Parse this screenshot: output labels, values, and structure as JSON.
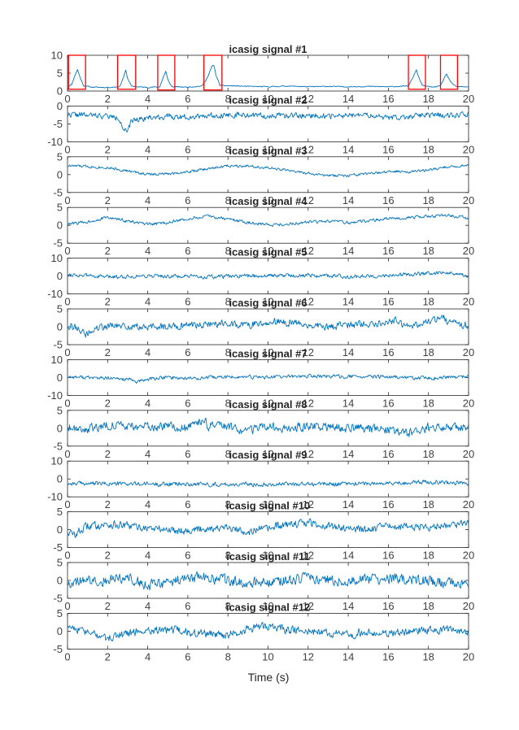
{
  "chart_data": {
    "type": "line",
    "line_color": "#0072BD",
    "box_color": "#FF0000",
    "axis_color": "#262626",
    "xlabel": "Time (s)",
    "xlim": [
      0,
      20
    ],
    "x_ticks": [
      0,
      2,
      4,
      6,
      8,
      10,
      12,
      14,
      16,
      18,
      20
    ],
    "grid": false,
    "panels": [
      {
        "title": "icasig signal #1",
        "ylim": [
          0,
          10
        ],
        "y_ticks": [
          0,
          5,
          10
        ],
        "series_points": [
          [
            0,
            1.3
          ],
          [
            0.2,
            1.8
          ],
          [
            0.4,
            4.8
          ],
          [
            0.5,
            6
          ],
          [
            0.6,
            4.2
          ],
          [
            0.8,
            1.5
          ],
          [
            1.2,
            1.1
          ],
          [
            2,
            1
          ],
          [
            2.6,
            1.2
          ],
          [
            2.8,
            4
          ],
          [
            2.9,
            5.8
          ],
          [
            3,
            3.5
          ],
          [
            3.2,
            1.3
          ],
          [
            4,
            1
          ],
          [
            4.6,
            1.2
          ],
          [
            4.8,
            4.2
          ],
          [
            4.9,
            5.5
          ],
          [
            5,
            3.2
          ],
          [
            5.2,
            1.2
          ],
          [
            6,
            1.1
          ],
          [
            6.7,
            1.4
          ],
          [
            7,
            4
          ],
          [
            7.2,
            6.9
          ],
          [
            7.3,
            7.2
          ],
          [
            7.4,
            4.5
          ],
          [
            7.6,
            1.6
          ],
          [
            8,
            1.5
          ],
          [
            9,
            1.3
          ],
          [
            10,
            1.2
          ],
          [
            11,
            1.4
          ],
          [
            12,
            1.2
          ],
          [
            13,
            1.3
          ],
          [
            14,
            1.2
          ],
          [
            15,
            1.3
          ],
          [
            16,
            1.2
          ],
          [
            17,
            1.4
          ],
          [
            17.2,
            3.5
          ],
          [
            17.4,
            6
          ],
          [
            17.5,
            4
          ],
          [
            17.7,
            1.5
          ],
          [
            18.2,
            1.1
          ],
          [
            18.6,
            1.4
          ],
          [
            18.8,
            3.8
          ],
          [
            18.9,
            4.8
          ],
          [
            19.1,
            2.5
          ],
          [
            19.4,
            1.2
          ],
          [
            20,
            1.2
          ]
        ],
        "seed": 11,
        "noise": 0.12,
        "boxes": [
          [
            0.05,
            0.9,
            0.5,
            10
          ],
          [
            2.5,
            3.4,
            0.5,
            10
          ],
          [
            4.5,
            5.35,
            0.3,
            10
          ],
          [
            6.8,
            7.7,
            0.3,
            10
          ],
          [
            17,
            17.85,
            0.5,
            10
          ],
          [
            18.6,
            19.45,
            0.5,
            10
          ]
        ]
      },
      {
        "title": "icasig signal #2",
        "ylim": [
          -10,
          0
        ],
        "y_ticks": [
          -10,
          -5,
          0
        ],
        "series_points": [
          [
            0,
            -2.3
          ],
          [
            1,
            -2.6
          ],
          [
            2,
            -2.8
          ],
          [
            2.6,
            -3.5
          ],
          [
            2.8,
            -6.5
          ],
          [
            3,
            -7.5
          ],
          [
            3.2,
            -4
          ],
          [
            4,
            -3.2
          ],
          [
            5,
            -3
          ],
          [
            6,
            -3
          ],
          [
            7,
            -2.6
          ],
          [
            8,
            -2.5
          ],
          [
            9,
            -2.6
          ],
          [
            10,
            -2.8
          ],
          [
            11,
            -2.7
          ],
          [
            12,
            -2.6
          ],
          [
            13,
            -2.8
          ],
          [
            14,
            -2.7
          ],
          [
            15,
            -2.6
          ],
          [
            16,
            -3.3
          ],
          [
            17,
            -2.9
          ],
          [
            18,
            -2.6
          ],
          [
            19,
            -2.5
          ],
          [
            20,
            -2.3
          ]
        ],
        "seed": 22,
        "noise": 0.7
      },
      {
        "title": "icasig signal #3",
        "ylim": [
          -5,
          5
        ],
        "y_ticks": [
          -5,
          0,
          5
        ],
        "series_points": [
          [
            0,
            2.5
          ],
          [
            2,
            2
          ],
          [
            3,
            1
          ],
          [
            4,
            0.1
          ],
          [
            5,
            0.2
          ],
          [
            6,
            0.8
          ],
          [
            7,
            1.6
          ],
          [
            8,
            2.5
          ],
          [
            9,
            2.5
          ],
          [
            10,
            1.8
          ],
          [
            11,
            1.2
          ],
          [
            12,
            0.3
          ],
          [
            13,
            -0.3
          ],
          [
            14,
            -0.3
          ],
          [
            15,
            0.2
          ],
          [
            16,
            0.8
          ],
          [
            17,
            0.9
          ],
          [
            18,
            1.2
          ],
          [
            19,
            2.2
          ],
          [
            20,
            2.6
          ]
        ],
        "seed": 33,
        "noise": 0.35
      },
      {
        "title": "icasig signal #4",
        "ylim": [
          -5,
          5
        ],
        "y_ticks": [
          -5,
          0,
          5
        ],
        "series_points": [
          [
            0,
            0.3
          ],
          [
            1,
            1
          ],
          [
            2,
            2.2
          ],
          [
            3,
            1.2
          ],
          [
            4,
            0.2
          ],
          [
            5,
            0.8
          ],
          [
            6,
            1.8
          ],
          [
            7,
            2.5
          ],
          [
            8,
            1.8
          ],
          [
            9,
            0.8
          ],
          [
            10,
            0.2
          ],
          [
            11,
            0.3
          ],
          [
            12,
            0.9
          ],
          [
            13,
            1.1
          ],
          [
            14,
            0.8
          ],
          [
            15,
            1.3
          ],
          [
            16,
            1.8
          ],
          [
            17,
            2.2
          ],
          [
            18,
            2.5
          ],
          [
            19,
            2.8
          ],
          [
            20,
            2
          ]
        ],
        "seed": 44,
        "noise": 0.4
      },
      {
        "title": "icasig signal #5",
        "ylim": [
          -10,
          10
        ],
        "y_ticks": [
          -10,
          0,
          10
        ],
        "series_points": [
          [
            0,
            1
          ],
          [
            2,
            -0.5
          ],
          [
            4,
            0.2
          ],
          [
            6,
            -0.3
          ],
          [
            7,
            -0.6
          ],
          [
            8,
            -0.2
          ],
          [
            10,
            0.3
          ],
          [
            12,
            0.5
          ],
          [
            14,
            -0.2
          ],
          [
            16,
            0.3
          ],
          [
            18,
            1.5
          ],
          [
            19,
            2
          ],
          [
            20,
            -0.5
          ]
        ],
        "seed": 55,
        "noise": 1.0
      },
      {
        "title": "icasig signal #6",
        "ylim": [
          -5,
          5
        ],
        "y_ticks": [
          -5,
          0,
          5
        ],
        "series_points": [
          [
            0,
            0.5
          ],
          [
            0.6,
            -0.5
          ],
          [
            0.9,
            -2.5
          ],
          [
            1.2,
            -1
          ],
          [
            2,
            0.3
          ],
          [
            4,
            -0.2
          ],
          [
            6,
            0.5
          ],
          [
            8,
            1
          ],
          [
            9,
            0.4
          ],
          [
            10,
            1.5
          ],
          [
            12,
            0.6
          ],
          [
            13,
            -0.2
          ],
          [
            14,
            0.5
          ],
          [
            16,
            1.2
          ],
          [
            16.3,
            2
          ],
          [
            17,
            0
          ],
          [
            18,
            1.5
          ],
          [
            18.8,
            3
          ],
          [
            19,
            1
          ],
          [
            20,
            0.5
          ]
        ],
        "seed": 66,
        "noise": 0.9
      },
      {
        "title": "icasig signal #7",
        "ylim": [
          -10,
          10
        ],
        "y_ticks": [
          -10,
          0,
          10
        ],
        "series_points": [
          [
            0,
            0.5
          ],
          [
            2,
            -0.5
          ],
          [
            3,
            -1
          ],
          [
            3.5,
            -2.5
          ],
          [
            4,
            -1
          ],
          [
            5,
            0.2
          ],
          [
            6,
            -0.5
          ],
          [
            8,
            0.3
          ],
          [
            10,
            0.2
          ],
          [
            12,
            0.8
          ],
          [
            14,
            0.5
          ],
          [
            16,
            0.3
          ],
          [
            18,
            -0.5
          ],
          [
            20,
            0.5
          ]
        ],
        "seed": 77,
        "noise": 0.9
      },
      {
        "title": "icasig signal #8",
        "ylim": [
          -5,
          5
        ],
        "y_ticks": [
          -5,
          0,
          5
        ],
        "series_points": [
          [
            0,
            0.5
          ],
          [
            1,
            -0.3
          ],
          [
            2,
            1
          ],
          [
            3,
            0.5
          ],
          [
            4,
            0.3
          ],
          [
            5,
            0.5
          ],
          [
            6,
            0
          ],
          [
            6.8,
            2.5
          ],
          [
            7,
            0.5
          ],
          [
            8,
            0.3
          ],
          [
            9,
            -0.8
          ],
          [
            10,
            0.3
          ],
          [
            11,
            0
          ],
          [
            12,
            0.5
          ],
          [
            14,
            0
          ],
          [
            16,
            -0.3
          ],
          [
            17,
            -1.5
          ],
          [
            18,
            0.3
          ],
          [
            20,
            0.5
          ]
        ],
        "seed": 88,
        "noise": 1.1
      },
      {
        "title": "icasig signal #9",
        "ylim": [
          -10,
          10
        ],
        "y_ticks": [
          -10,
          0,
          10
        ],
        "series_points": [
          [
            0,
            -2.5
          ],
          [
            4,
            -2.8
          ],
          [
            8,
            -3
          ],
          [
            12,
            -2.8
          ],
          [
            16,
            -2.5
          ],
          [
            18,
            -1.5
          ],
          [
            20,
            -2.5
          ]
        ],
        "seed": 99,
        "noise": 1.1
      },
      {
        "title": "icasig signal #10",
        "ylim": [
          -5,
          5
        ],
        "y_ticks": [
          -5,
          0,
          5
        ],
        "series_points": [
          [
            0,
            -0.5
          ],
          [
            0.3,
            -1.5
          ],
          [
            1,
            1
          ],
          [
            2,
            1.5
          ],
          [
            3,
            1
          ],
          [
            4,
            0.5
          ],
          [
            5,
            0
          ],
          [
            6,
            -0.2
          ],
          [
            7,
            0.5
          ],
          [
            8,
            0.3
          ],
          [
            9,
            -0.5
          ],
          [
            10,
            0.3
          ],
          [
            11,
            1.5
          ],
          [
            12,
            2
          ],
          [
            13,
            1
          ],
          [
            14,
            0.5
          ],
          [
            15,
            0
          ],
          [
            16,
            1
          ],
          [
            18,
            0.8
          ],
          [
            20,
            2
          ]
        ],
        "seed": 110,
        "noise": 1.0
      },
      {
        "title": "icasig signal #11",
        "ylim": [
          -5,
          5
        ],
        "y_ticks": [
          -5,
          0,
          5
        ],
        "series_points": [
          [
            0,
            -0.5
          ],
          [
            2,
            0.2
          ],
          [
            3,
            1
          ],
          [
            4,
            -1.5
          ],
          [
            5,
            -0.5
          ],
          [
            6,
            0.5
          ],
          [
            7,
            0.8
          ],
          [
            8,
            0
          ],
          [
            9,
            -0.8
          ],
          [
            10,
            -0.2
          ],
          [
            12,
            0.5
          ],
          [
            14,
            0
          ],
          [
            16,
            0.5
          ],
          [
            18,
            -0.2
          ],
          [
            20,
            -1
          ]
        ],
        "seed": 121,
        "noise": 1.3
      },
      {
        "title": "icasig signal #12",
        "ylim": [
          -5,
          5
        ],
        "y_ticks": [
          -5,
          0,
          5
        ],
        "series_points": [
          [
            0,
            2
          ],
          [
            0.5,
            0.5
          ],
          [
            1,
            -0.5
          ],
          [
            2,
            -2
          ],
          [
            3,
            -0.5
          ],
          [
            4,
            0.2
          ],
          [
            5,
            0.5
          ],
          [
            6,
            -0.3
          ],
          [
            7,
            -0.8
          ],
          [
            8,
            -1
          ],
          [
            9,
            0.5
          ],
          [
            10,
            1.5
          ],
          [
            11,
            0.3
          ],
          [
            12,
            0
          ],
          [
            13,
            -0.5
          ],
          [
            14,
            -1
          ],
          [
            15,
            -0.2
          ],
          [
            16,
            -0.8
          ],
          [
            17,
            -0.2
          ],
          [
            18,
            0.3
          ],
          [
            19,
            0.5
          ],
          [
            20,
            -0.5
          ]
        ],
        "seed": 132,
        "noise": 1.0
      }
    ]
  }
}
